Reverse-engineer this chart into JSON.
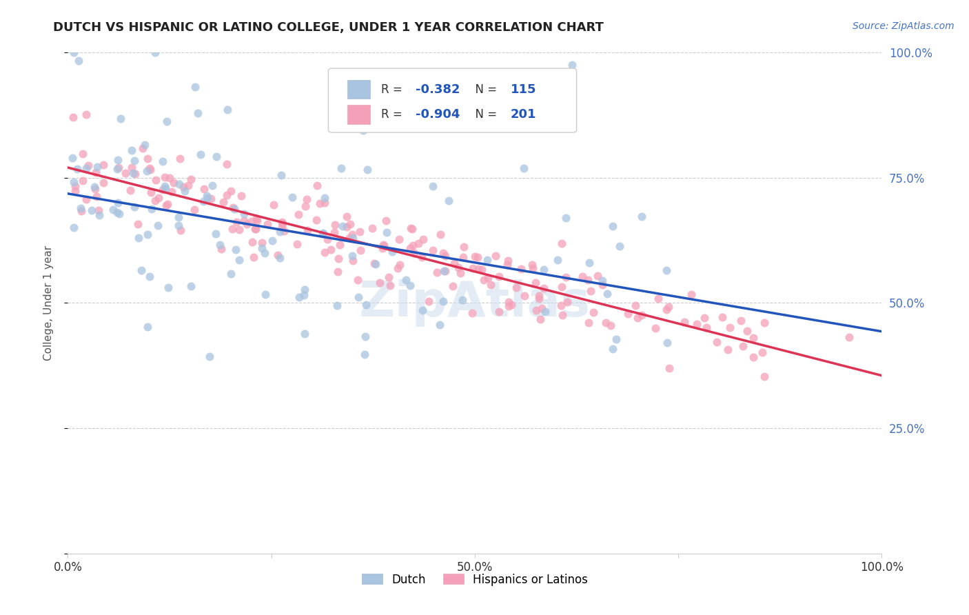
{
  "title": "DUTCH VS HISPANIC OR LATINO COLLEGE, UNDER 1 YEAR CORRELATION CHART",
  "source_text": "Source: ZipAtlas.com",
  "ylabel": "College, Under 1 year",
  "xlim": [
    0,
    1
  ],
  "ylim": [
    0,
    1
  ],
  "dutch_color": "#a8c4e0",
  "hispanic_color": "#f4a0b8",
  "dutch_line_color": "#2255bb",
  "hispanic_line_color": "#dd3355",
  "dutch_intercept": 0.718,
  "dutch_slope": -0.275,
  "hispanic_intercept": 0.77,
  "hispanic_slope": -0.415,
  "watermark": "ZipAtlas",
  "n_dutch": 115,
  "n_hispanic": 201,
  "r_dutch": -0.382,
  "r_hispanic": -0.904
}
